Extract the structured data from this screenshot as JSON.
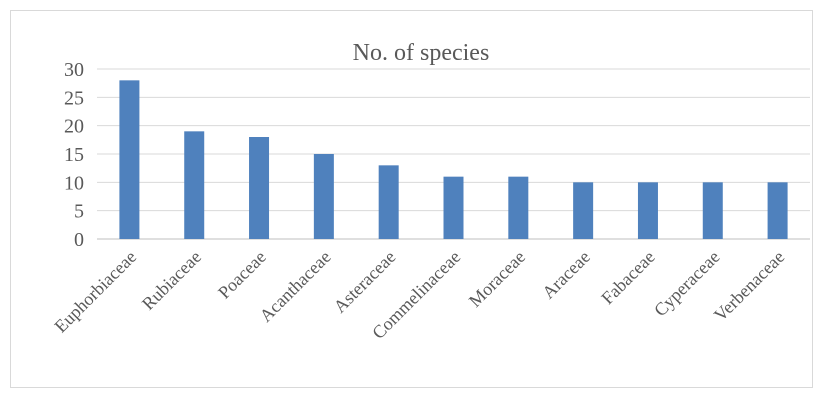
{
  "chart_data": {
    "type": "bar",
    "title": "No. of species",
    "categories": [
      "Euphorbiaceae",
      "Rubiaceae",
      "Poaceae",
      "Acanthaceae",
      "Asteraceae",
      "Commelinaceae",
      "Moraceae",
      "Araceae",
      "Fabaceae",
      "Cyperaceae",
      "Verbenaceae"
    ],
    "series": [
      {
        "values": [
          28,
          19,
          18,
          15,
          13,
          11,
          11,
          10,
          10,
          10,
          10
        ]
      }
    ],
    "ylim": [
      0,
      30
    ],
    "yticks": [
      0,
      5,
      10,
      15,
      20,
      25,
      30
    ],
    "xlabel": "",
    "ylabel": "",
    "grid": true,
    "legend": "none",
    "bar_color": "#4f81bd"
  }
}
